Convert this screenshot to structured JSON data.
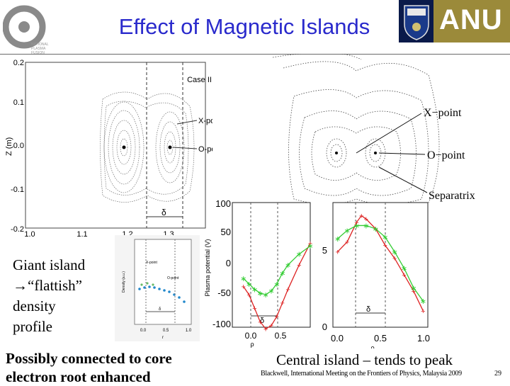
{
  "slide": {
    "title": "Effect of Magnetic Islands",
    "caption_left": [
      "Giant island",
      "→“flattish”",
      "density",
      "profile"
    ],
    "caption_bottom_line1": "Possibly connected to core",
    "caption_bottom_line2": "electron root enhanced",
    "caption_center": "Central island – tends to peak",
    "footer_note": "Blackwell, International Meeting on the Frontiers of Physics, Malaysia 2009",
    "slide_number": "29"
  },
  "logos": {
    "right_text": "ANU",
    "left_text": "NATIONAL PLASMA FUSION",
    "brand_color": "#9b8a3a"
  },
  "figure_left": {
    "case_label": "Case III",
    "ylabel": "Z (m)",
    "yticks": [
      "0.2",
      "0.1",
      "0.0",
      "-0.1",
      "-0.2"
    ],
    "xticks": [
      "1.0",
      "1.1",
      "1.2",
      "1.3"
    ],
    "annotations": [
      "X-point",
      "O-point",
      "δ"
    ]
  },
  "figure_right": {
    "annotations": [
      "X−point",
      "O−point",
      "Separatrix"
    ]
  },
  "inset_density": {
    "ylabel": "Density (a.u.)",
    "annotations": [
      "X-point",
      "O-point",
      "δ"
    ],
    "xticks": [
      "0.0",
      "0.5",
      "1.0"
    ],
    "xlabel": "r"
  },
  "chart_data": [
    {
      "type": "line",
      "ylabel": "Plasma potential (V)",
      "xlabel": "ρ",
      "yticks": [
        "100",
        "50",
        "0",
        "-50",
        "-100"
      ],
      "xticks": [
        "0.0",
        "0.5"
      ],
      "annotation": "δ",
      "series": [
        {
          "color": "#dd2222",
          "x": [
            0.0,
            0.05,
            0.1,
            0.15,
            0.2,
            0.25,
            0.3,
            0.35,
            0.4,
            0.5,
            0.6
          ],
          "y": [
            -40,
            -55,
            -80,
            -105,
            -118,
            -112,
            -95,
            -70,
            -45,
            0,
            40
          ]
        },
        {
          "color": "#33cc33",
          "x": [
            0.0,
            0.05,
            0.1,
            0.15,
            0.2,
            0.25,
            0.3,
            0.35,
            0.4,
            0.5,
            0.6
          ],
          "y": [
            -25,
            -35,
            -45,
            -52,
            -55,
            -48,
            -35,
            -15,
            0,
            20,
            35
          ]
        }
      ]
    },
    {
      "type": "line",
      "xlabel": "ρ",
      "yticks": [
        "5",
        "0"
      ],
      "xticks": [
        "0.0",
        "0.5",
        "1.0"
      ],
      "annotation": "δ",
      "series": [
        {
          "color": "#dd2222",
          "x": [
            0.0,
            0.1,
            0.2,
            0.25,
            0.3,
            0.4,
            0.5,
            0.6,
            0.7,
            0.8,
            0.9
          ],
          "y": [
            4.6,
            5.2,
            6.4,
            6.8,
            6.6,
            6.0,
            5.0,
            4.2,
            3.2,
            2.2,
            1.0
          ]
        },
        {
          "color": "#33cc33",
          "x": [
            0.0,
            0.1,
            0.2,
            0.3,
            0.4,
            0.5,
            0.6,
            0.7,
            0.8,
            0.9
          ],
          "y": [
            5.4,
            5.9,
            6.2,
            6.2,
            6.0,
            5.5,
            4.6,
            3.6,
            2.4,
            1.6
          ]
        }
      ]
    }
  ]
}
